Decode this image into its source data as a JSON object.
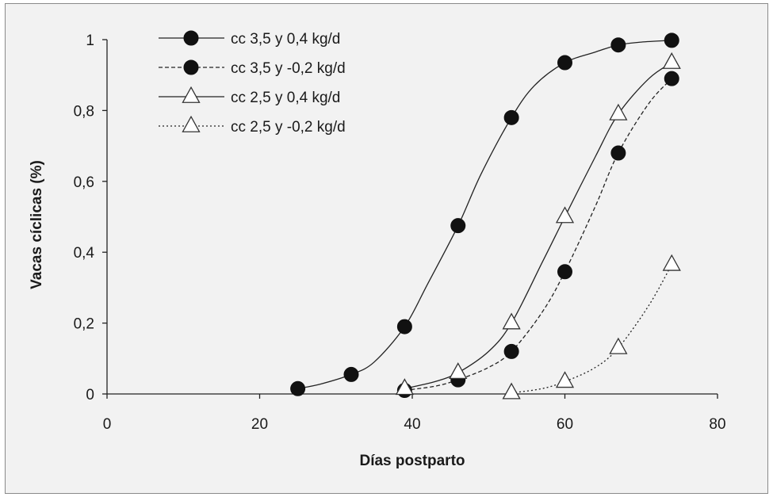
{
  "chart_data": {
    "type": "scatter",
    "xlabel": "Días postparto",
    "ylabel": "Vacas cíclicas (%)",
    "xlim": [
      0,
      80
    ],
    "ylim": [
      0,
      1
    ],
    "x_ticks": [
      "0",
      "20",
      "40",
      "60",
      "80"
    ],
    "y_ticks": [
      "0",
      "0,2",
      "0,4",
      "0,6",
      "0,8",
      "1"
    ],
    "legend_position": "top-left",
    "grid": false,
    "series": [
      {
        "name": "cc 3,5 y 0,4 kg/d",
        "marker": "filled-circle",
        "line": "solid",
        "points": [
          [
            25,
            0.015
          ],
          [
            32,
            0.055
          ],
          [
            39,
            0.19
          ],
          [
            46,
            0.475
          ],
          [
            53,
            0.78
          ],
          [
            60,
            0.935
          ],
          [
            67,
            0.985
          ],
          [
            74,
            0.998
          ]
        ],
        "curve": [
          [
            25,
            0.015
          ],
          [
            28,
            0.028
          ],
          [
            32,
            0.055
          ],
          [
            35,
            0.09
          ],
          [
            39,
            0.19
          ],
          [
            42,
            0.31
          ],
          [
            46,
            0.475
          ],
          [
            49,
            0.62
          ],
          [
            53,
            0.78
          ],
          [
            56,
            0.87
          ],
          [
            60,
            0.935
          ],
          [
            64,
            0.965
          ],
          [
            67,
            0.985
          ],
          [
            70,
            0.993
          ],
          [
            74,
            0.998
          ]
        ]
      },
      {
        "name": "cc 3,5 y -0,2 kg/d",
        "marker": "filled-circle",
        "line": "dashed",
        "points": [
          [
            39,
            0.01
          ],
          [
            46,
            0.04
          ],
          [
            53,
            0.12
          ],
          [
            60,
            0.345
          ],
          [
            67,
            0.68
          ],
          [
            74,
            0.89
          ]
        ],
        "curve": [
          [
            39,
            0.01
          ],
          [
            43,
            0.022
          ],
          [
            46,
            0.04
          ],
          [
            50,
            0.075
          ],
          [
            53,
            0.12
          ],
          [
            57,
            0.23
          ],
          [
            60,
            0.345
          ],
          [
            64,
            0.53
          ],
          [
            67,
            0.68
          ],
          [
            71,
            0.82
          ],
          [
            74,
            0.89
          ]
        ]
      },
      {
        "name": "cc 2,5 y 0,4 kg/d",
        "marker": "open-triangle",
        "line": "solid",
        "points": [
          [
            39,
            0.015
          ],
          [
            46,
            0.06
          ],
          [
            53,
            0.2
          ],
          [
            60,
            0.5
          ],
          [
            67,
            0.79
          ],
          [
            74,
            0.935
          ]
        ],
        "curve": [
          [
            39,
            0.015
          ],
          [
            43,
            0.035
          ],
          [
            46,
            0.06
          ],
          [
            50,
            0.12
          ],
          [
            53,
            0.2
          ],
          [
            57,
            0.37
          ],
          [
            60,
            0.5
          ],
          [
            64,
            0.67
          ],
          [
            67,
            0.79
          ],
          [
            71,
            0.89
          ],
          [
            74,
            0.935
          ]
        ]
      },
      {
        "name": "cc 2,5 y -0,2 kg/d",
        "marker": "open-triangle",
        "line": "dotted",
        "points": [
          [
            53,
            0.003
          ],
          [
            60,
            0.035
          ],
          [
            67,
            0.13
          ],
          [
            74,
            0.365
          ]
        ],
        "curve": [
          [
            53,
            0.003
          ],
          [
            57,
            0.015
          ],
          [
            60,
            0.035
          ],
          [
            64,
            0.075
          ],
          [
            67,
            0.13
          ],
          [
            71,
            0.25
          ],
          [
            74,
            0.365
          ]
        ]
      }
    ]
  }
}
